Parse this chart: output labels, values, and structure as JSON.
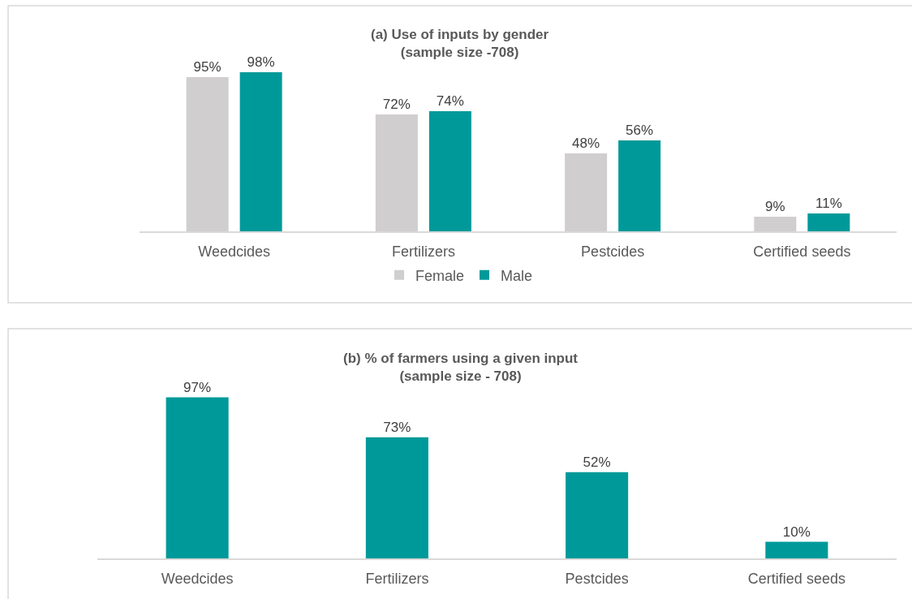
{
  "chart_data": [
    {
      "type": "bar",
      "title": "(a) Use of inputs by gender\n(sample size -708)",
      "categories": [
        "Weedcides",
        "Fertilizers",
        "Pestcides",
        "Certified seeds"
      ],
      "series": [
        {
          "name": "Female",
          "color": "#d0cece",
          "values": [
            95,
            72,
            48,
            9
          ],
          "value_labels": [
            "95%",
            "72%",
            "48%",
            "9%"
          ]
        },
        {
          "name": "Male",
          "color": "#009999",
          "values": [
            98,
            74,
            56,
            11
          ],
          "value_labels": [
            "98%",
            "74%",
            "56%",
            "11%"
          ]
        }
      ],
      "legend": "bottom",
      "tick_labels": "x"
    },
    {
      "type": "bar",
      "title": "(b) % of farmers using a given input\n(sample size - 708)",
      "categories": [
        "Weedcides",
        "Fertilizers",
        "Pestcides",
        "Certified seeds"
      ],
      "values": [
        97,
        73,
        52,
        10
      ],
      "color": "#009999",
      "value_labels": [
        "97%",
        "73%",
        "52%",
        "10%"
      ],
      "tick_labels": "x"
    }
  ]
}
